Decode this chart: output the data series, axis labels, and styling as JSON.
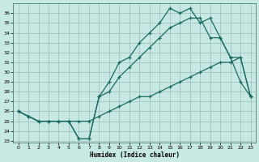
{
  "xlabel": "Humidex (Indice chaleur)",
  "bg_color": "#c8e8e4",
  "grid_color": "#9abcb8",
  "line_color": "#1a6b60",
  "xlim": [
    -0.5,
    23.5
  ],
  "ylim": [
    22.8,
    37.0
  ],
  "yticks": [
    23,
    24,
    25,
    26,
    27,
    28,
    29,
    30,
    31,
    32,
    33,
    34,
    35,
    36
  ],
  "xticks": [
    0,
    1,
    2,
    3,
    4,
    5,
    6,
    7,
    8,
    9,
    10,
    11,
    12,
    13,
    14,
    15,
    16,
    17,
    18,
    19,
    20,
    21,
    22,
    23
  ],
  "s1_x": [
    0,
    1,
    2,
    3,
    4,
    5,
    6,
    7,
    8,
    9,
    10,
    11,
    12,
    13,
    14,
    15,
    16,
    17,
    18,
    19,
    20,
    21,
    22,
    23
  ],
  "s1_y": [
    26.0,
    25.5,
    25.0,
    25.0,
    25.0,
    25.0,
    23.2,
    23.2,
    27.5,
    29.0,
    31.0,
    31.5,
    33.0,
    34.0,
    35.0,
    36.5,
    36.0,
    36.5,
    35.0,
    35.5,
    33.5,
    31.5,
    29.0,
    27.5
  ],
  "s2_x": [
    0,
    1,
    2,
    3,
    4,
    5,
    6,
    7,
    8,
    9,
    10,
    11,
    12,
    13,
    14,
    15,
    16,
    17,
    18,
    19,
    20,
    21,
    22,
    23
  ],
  "s2_y": [
    26.0,
    25.5,
    25.0,
    25.0,
    25.0,
    25.0,
    23.2,
    23.2,
    27.5,
    28.0,
    29.5,
    30.5,
    31.5,
    32.5,
    33.5,
    34.5,
    35.0,
    35.5,
    35.5,
    33.5,
    33.5,
    31.5,
    31.5,
    27.5
  ],
  "s3_x": [
    0,
    1,
    2,
    3,
    4,
    5,
    6,
    7,
    8,
    9,
    10,
    11,
    12,
    13,
    14,
    15,
    16,
    17,
    18,
    19,
    20,
    21,
    22,
    23
  ],
  "s3_y": [
    26.0,
    25.5,
    25.0,
    25.0,
    25.0,
    25.0,
    25.0,
    25.0,
    25.5,
    26.0,
    26.5,
    27.0,
    27.5,
    27.5,
    28.0,
    28.5,
    29.0,
    29.5,
    30.0,
    30.5,
    31.0,
    31.0,
    31.5,
    27.5
  ]
}
